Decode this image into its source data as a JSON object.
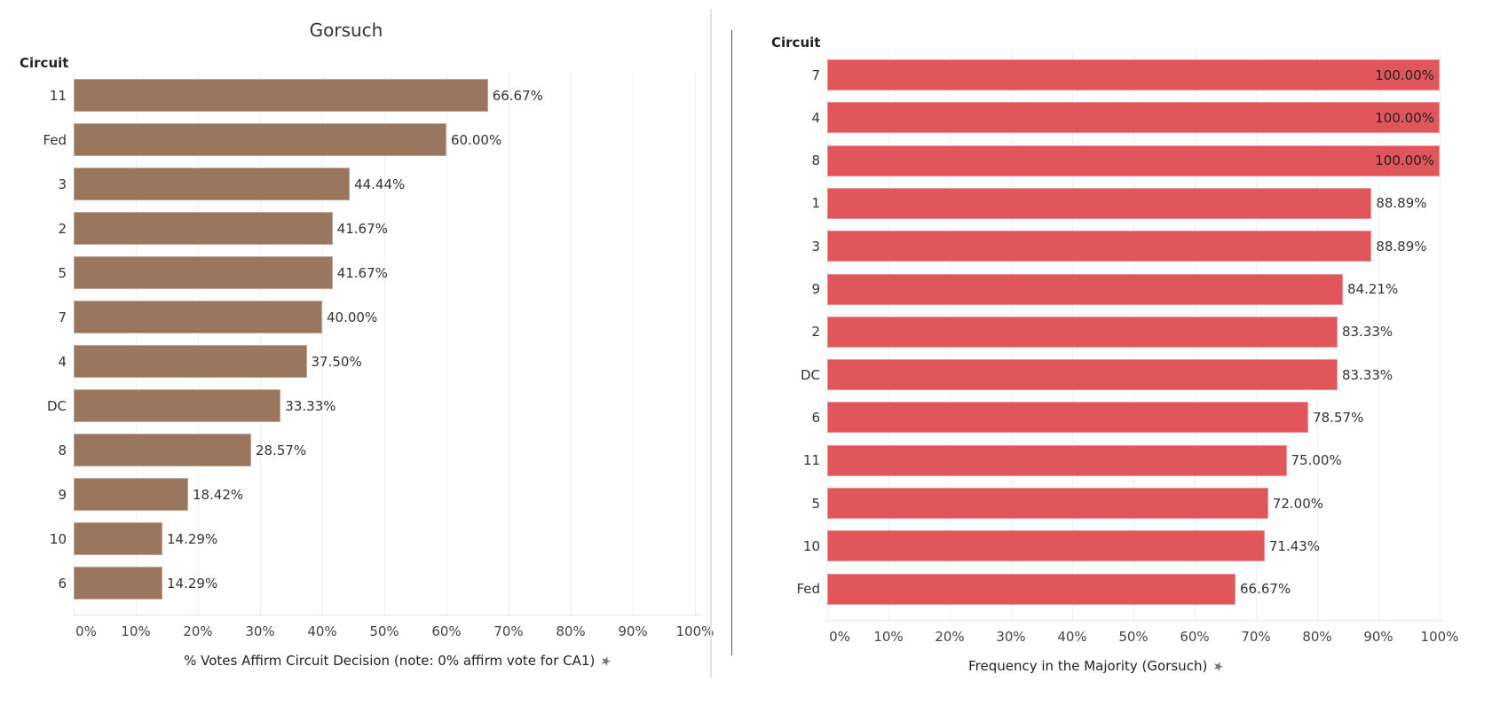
{
  "chart_data": [
    {
      "type": "bar",
      "orientation": "horizontal",
      "title": "Gorsuch",
      "row_header": "Circuit",
      "xlabel": "% Votes Affirm Circuit Decision (note: 0% affirm vote for CA1)",
      "xlim": [
        0,
        100
      ],
      "xticks": [
        "0%",
        "10%",
        "20%",
        "30%",
        "40%",
        "50%",
        "60%",
        "70%",
        "80%",
        "90%",
        "100%"
      ],
      "grid": true,
      "color": "#9b765e",
      "pin_icon": "pin-icon",
      "categories": [
        "11",
        "Fed",
        "3",
        "2",
        "5",
        "7",
        "4",
        "DC",
        "8",
        "9",
        "10",
        "6"
      ],
      "values": [
        66.67,
        60.0,
        44.44,
        41.67,
        41.67,
        40.0,
        37.5,
        33.33,
        28.57,
        18.42,
        14.29,
        14.29
      ],
      "labels": [
        "66.67%",
        "60.00%",
        "44.44%",
        "41.67%",
        "41.67%",
        "40.00%",
        "37.50%",
        "33.33%",
        "28.57%",
        "18.42%",
        "14.29%",
        "14.29%"
      ]
    },
    {
      "type": "bar",
      "orientation": "horizontal",
      "title": "",
      "row_header": "Circuit",
      "xlabel": "Frequency in the Majority (Gorsuch)",
      "xlim": [
        0,
        100
      ],
      "xticks": [
        "0%",
        "10%",
        "20%",
        "30%",
        "40%",
        "50%",
        "60%",
        "70%",
        "80%",
        "90%",
        "100%"
      ],
      "grid": true,
      "color": "#e0565a",
      "pin_icon": "pin-icon",
      "categories": [
        "7",
        "4",
        "8",
        "1",
        "3",
        "9",
        "2",
        "DC",
        "6",
        "11",
        "5",
        "10",
        "Fed"
      ],
      "values": [
        100.0,
        100.0,
        100.0,
        88.89,
        88.89,
        84.21,
        83.33,
        83.33,
        78.57,
        75.0,
        72.0,
        71.43,
        66.67
      ],
      "labels": [
        "100.00%",
        "100.00%",
        "100.00%",
        "88.89%",
        "88.89%",
        "84.21%",
        "83.33%",
        "83.33%",
        "78.57%",
        "75.00%",
        "72.00%",
        "71.43%",
        "66.67%"
      ]
    }
  ]
}
